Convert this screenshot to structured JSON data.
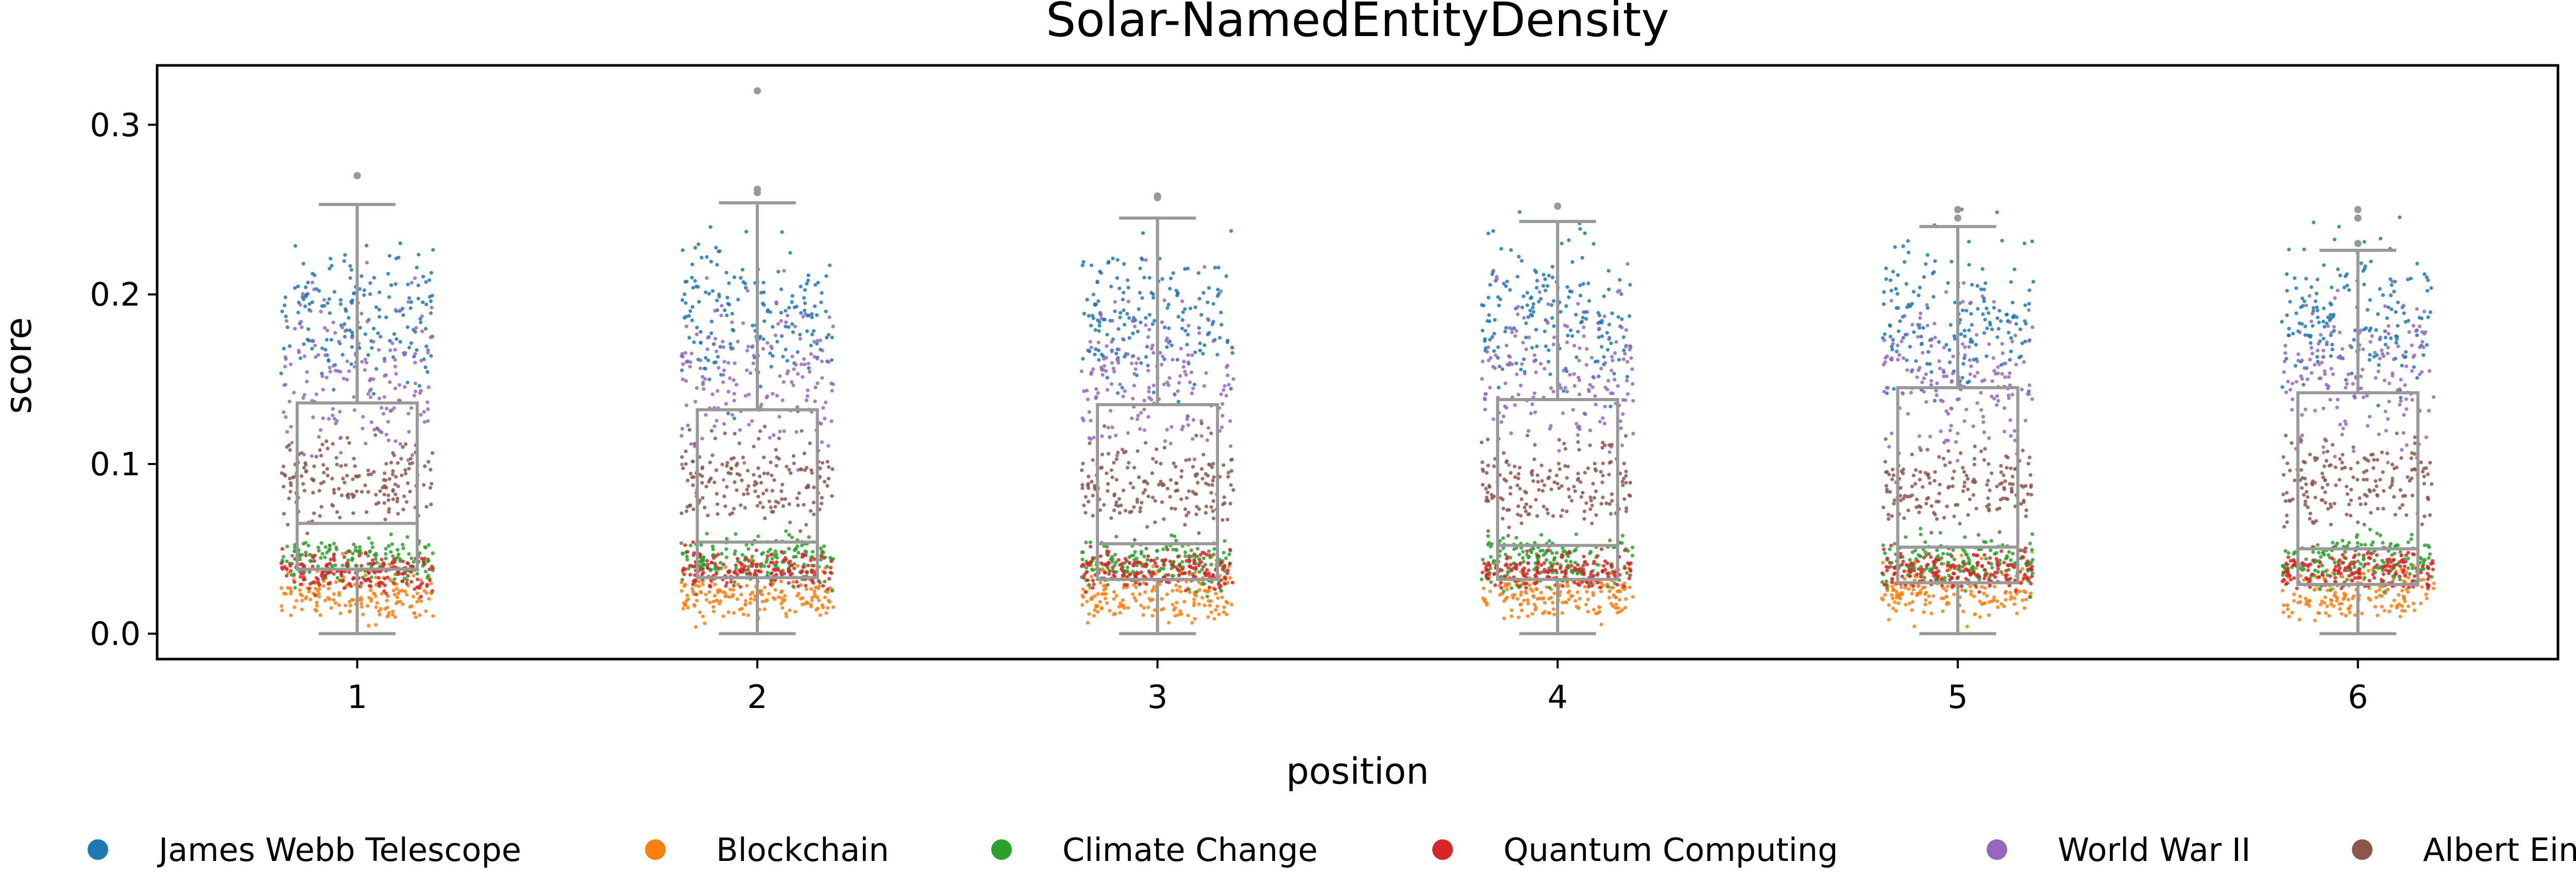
{
  "chart_data": {
    "type": "scatter",
    "subtype": "box-strip",
    "title": "Solar-NamedEntityDensity",
    "xlabel": "position",
    "ylabel": "score",
    "categories": [
      "1",
      "2",
      "3",
      "4",
      "5",
      "6"
    ],
    "ylim": [
      -0.015,
      0.335
    ],
    "yticks": [
      "0.0",
      "0.1",
      "0.2",
      "0.3"
    ],
    "ytick_values": [
      0.0,
      0.1,
      0.2,
      0.3
    ],
    "grid": false,
    "legend_position": "bottom",
    "box_color": "#999999",
    "series": [
      {
        "name": "James Webb Telescope",
        "color": "#1f77b4",
        "range": [
          0.12,
          0.255
        ],
        "center": 0.185
      },
      {
        "name": "Blockchain",
        "color": "#ff7f0e",
        "range": [
          0.0,
          0.05
        ],
        "center": 0.02
      },
      {
        "name": "Climate Change",
        "color": "#2ca02c",
        "range": [
          0.02,
          0.065
        ],
        "center": 0.045
      },
      {
        "name": "Quantum Computing",
        "color": "#d62728",
        "range": [
          0.02,
          0.055
        ],
        "center": 0.035
      },
      {
        "name": "World War II",
        "color": "#9467bd",
        "range": [
          0.08,
          0.23
        ],
        "center": 0.14
      },
      {
        "name": "Albert Einstein",
        "color": "#8c564b",
        "range": [
          0.05,
          0.13
        ],
        "center": 0.085
      }
    ],
    "boxes": [
      {
        "position": "1",
        "whisker_low": 0.0,
        "q1": 0.038,
        "median": 0.065,
        "q3": 0.136,
        "whisker_high": 0.253,
        "outliers": [
          0.27,
          0.27
        ]
      },
      {
        "position": "2",
        "whisker_low": 0.0,
        "q1": 0.033,
        "median": 0.054,
        "q3": 0.132,
        "whisker_high": 0.254,
        "outliers": [
          0.32,
          0.26,
          0.262
        ]
      },
      {
        "position": "3",
        "whisker_low": 0.0,
        "q1": 0.032,
        "median": 0.053,
        "q3": 0.135,
        "whisker_high": 0.245,
        "outliers": [
          0.257,
          0.258
        ]
      },
      {
        "position": "4",
        "whisker_low": 0.0,
        "q1": 0.032,
        "median": 0.052,
        "q3": 0.138,
        "whisker_high": 0.243,
        "outliers": [
          0.252
        ]
      },
      {
        "position": "5",
        "whisker_low": 0.0,
        "q1": 0.03,
        "median": 0.051,
        "q3": 0.145,
        "whisker_high": 0.24,
        "outliers": [
          0.245,
          0.25
        ]
      },
      {
        "position": "6",
        "whisker_low": 0.0,
        "q1": 0.029,
        "median": 0.05,
        "q3": 0.142,
        "whisker_high": 0.226,
        "outliers": [
          0.23,
          0.245,
          0.25
        ]
      }
    ]
  }
}
